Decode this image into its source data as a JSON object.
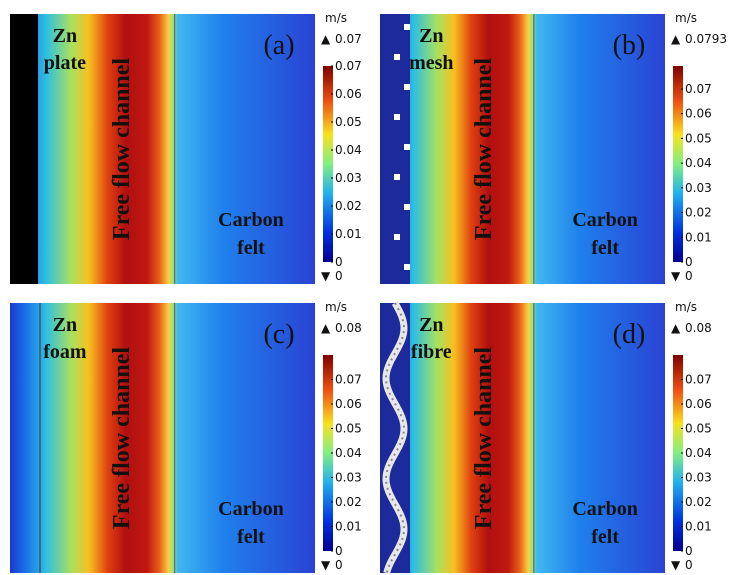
{
  "panels": [
    {
      "label": "(a)",
      "material": [
        "Zn",
        "plate"
      ],
      "channel": "Free flow channel",
      "electrode": [
        "Carbon",
        "felt"
      ],
      "unit": "m/s",
      "max": "0.07",
      "min": "0",
      "ticks": [
        "0",
        "0.01",
        "0.02",
        "0.03",
        "0.04",
        "0.05",
        "0.06",
        "0.07"
      ]
    },
    {
      "label": "(b)",
      "material": [
        "Zn",
        "mesh"
      ],
      "channel": "Free flow channel",
      "electrode": [
        "Carbon",
        "felt"
      ],
      "unit": "m/s",
      "max": "0.0793",
      "min": "0",
      "ticks": [
        "0",
        "0.01",
        "0.02",
        "0.03",
        "0.04",
        "0.05",
        "0.06",
        "0.07"
      ]
    },
    {
      "label": "(c)",
      "material": [
        "Zn",
        "foam"
      ],
      "channel": "Free flow channel",
      "electrode": [
        "Carbon",
        "felt"
      ],
      "unit": "m/s",
      "max": "0.08",
      "min": "0",
      "ticks": [
        "0",
        "0.01",
        "0.02",
        "0.03",
        "0.04",
        "0.05",
        "0.06",
        "0.07"
      ]
    },
    {
      "label": "(d)",
      "material": [
        "Zn",
        "fibre"
      ],
      "channel": "Free flow channel",
      "electrode": [
        "Carbon",
        "felt"
      ],
      "unit": "m/s",
      "max": "0.08",
      "min": "0",
      "ticks": [
        "0",
        "0.01",
        "0.02",
        "0.03",
        "0.04",
        "0.05",
        "0.06",
        "0.07"
      ]
    }
  ]
}
